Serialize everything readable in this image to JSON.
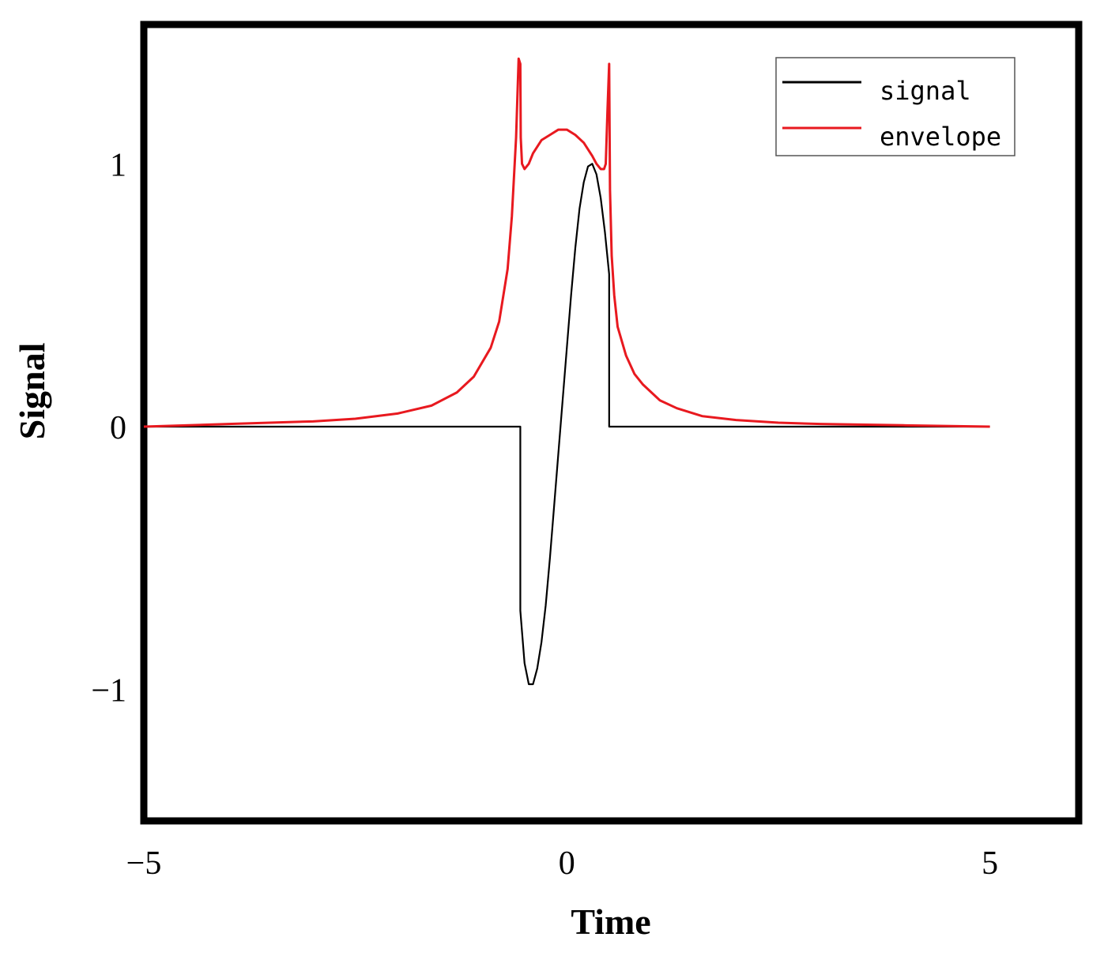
{
  "chart_data": {
    "type": "line",
    "title": "",
    "xlabel": "Time",
    "ylabel": "Signal",
    "xlim": [
      -5,
      6.05
    ],
    "ylim": [
      -1.5,
      1.53
    ],
    "xticks": [
      -5,
      0,
      5
    ],
    "xtick_labels": [
      "−5",
      "0",
      "5"
    ],
    "yticks": [
      1,
      0,
      -1
    ],
    "ytick_labels": [
      "1",
      "0",
      "−1"
    ],
    "grid": false,
    "legend_position": "top-right",
    "series": [
      {
        "name": "signal",
        "color": "#000000",
        "x": [
          -5,
          -0.55,
          -0.5499,
          -0.53,
          -0.5,
          -0.45,
          -0.4,
          -0.35,
          -0.3,
          -0.25,
          -0.2,
          -0.15,
          -0.1,
          -0.05,
          0,
          0.05,
          0.1,
          0.15,
          0.2,
          0.25,
          0.3,
          0.35,
          0.4,
          0.45,
          0.5,
          0.5001,
          5
        ],
        "y": [
          0,
          0,
          -0.7,
          -0.78,
          -0.9,
          -0.98,
          -0.98,
          -0.92,
          -0.82,
          -0.68,
          -0.5,
          -0.3,
          -0.1,
          0.1,
          0.3,
          0.5,
          0.68,
          0.83,
          0.93,
          0.99,
          1.0,
          0.96,
          0.87,
          0.74,
          0.58,
          0,
          0
        ]
      },
      {
        "name": "envelope",
        "color": "#e8191f",
        "x": [
          -5,
          -4,
          -3,
          -2.5,
          -2,
          -1.6,
          -1.3,
          -1.1,
          -0.9,
          -0.8,
          -0.7,
          -0.65,
          -0.6,
          -0.57,
          -0.55,
          -0.545,
          -0.53,
          -0.5,
          -0.45,
          -0.4,
          -0.3,
          -0.2,
          -0.1,
          0,
          0.1,
          0.2,
          0.3,
          0.35,
          0.4,
          0.44,
          0.46,
          0.48,
          0.5,
          0.51,
          0.53,
          0.56,
          0.6,
          0.7,
          0.8,
          0.9,
          1.1,
          1.3,
          1.6,
          2,
          2.5,
          3,
          4,
          5
        ],
        "y": [
          0,
          0.01,
          0.02,
          0.03,
          0.05,
          0.08,
          0.13,
          0.19,
          0.3,
          0.4,
          0.6,
          0.8,
          1.1,
          1.4,
          1.38,
          1.1,
          1.0,
          0.98,
          1.0,
          1.04,
          1.09,
          1.11,
          1.13,
          1.13,
          1.11,
          1.08,
          1.03,
          1.0,
          0.98,
          0.98,
          1.0,
          1.2,
          1.38,
          0.9,
          0.65,
          0.5,
          0.38,
          0.27,
          0.2,
          0.16,
          0.1,
          0.07,
          0.04,
          0.025,
          0.015,
          0.01,
          0.005,
          0
        ]
      }
    ]
  }
}
